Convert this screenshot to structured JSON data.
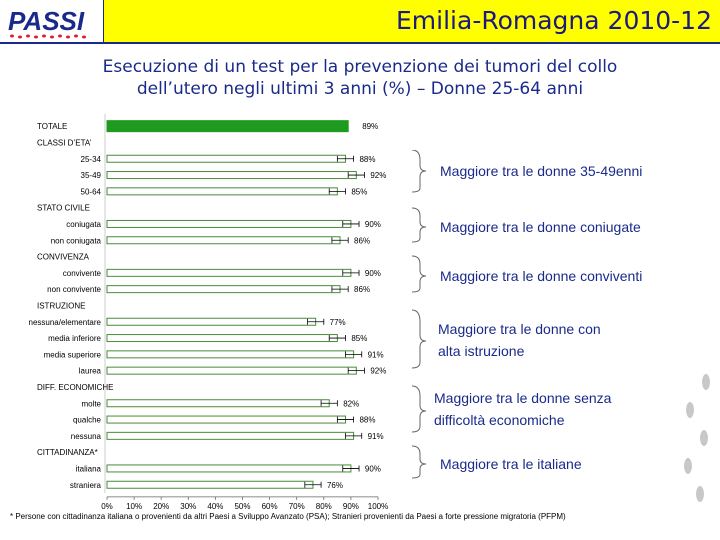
{
  "header": {
    "logo_text": "PASSI",
    "title": "Emilia-Romagna 2010-12"
  },
  "subtitle_line1": "Esecuzione di un test per la prevenzione dei tumori del collo",
  "subtitle_line2": "dell’utero negli ultimi 3 anni (%) – Donne 25-64 anni",
  "notes": [
    "Maggiore tra le donne 35-49enni",
    "Maggiore tra le donne coniugate",
    "Maggiore tra le donne conviventi",
    "Maggiore tra le donne con",
    "alta istruzione",
    "Maggiore tra le donne senza",
    "difficoltà economiche",
    "Maggiore tra le italiane"
  ],
  "footnote": "* Persone con cittadinanza italiana o provenienti da altri Paesi a Sviluppo Avanzato (PSA); Stranieri provenienti da Paesi a forte pressione migratoria (PFPM)",
  "colors": {
    "total_bar": "#1e9a1e",
    "bar_fill": "#ffffff",
    "bar_border": "#4a8a3a",
    "title_bg": "#ffff00",
    "text_blue": "#1a2a8a"
  },
  "chart_data": {
    "type": "bar",
    "orientation": "horizontal",
    "xlim": [
      0,
      100
    ],
    "x_ticks": [
      "0%",
      "10%",
      "20%",
      "30%",
      "40%",
      "50%",
      "60%",
      "70%",
      "80%",
      "90%",
      "100%"
    ],
    "rows": [
      {
        "label": "TOTALE",
        "kind": "total",
        "value": 89,
        "value_label": "89%"
      },
      {
        "label": "CLASSI D’ETA’",
        "kind": "header"
      },
      {
        "label": "25-34",
        "kind": "bar",
        "value": 88,
        "value_label": "88%"
      },
      {
        "label": "35-49",
        "kind": "bar",
        "value": 92,
        "value_label": "92%"
      },
      {
        "label": "50-64",
        "kind": "bar",
        "value": 85,
        "value_label": "85%"
      },
      {
        "label": "STATO CIVILE",
        "kind": "header"
      },
      {
        "label": "coniugata",
        "kind": "bar",
        "value": 90,
        "value_label": "90%"
      },
      {
        "label": "non coniugata",
        "kind": "bar",
        "value": 86,
        "value_label": "86%"
      },
      {
        "label": "CONVIVENZA",
        "kind": "header"
      },
      {
        "label": "convivente",
        "kind": "bar",
        "value": 90,
        "value_label": "90%"
      },
      {
        "label": "non convivente",
        "kind": "bar",
        "value": 86,
        "value_label": "86%"
      },
      {
        "label": "ISTRUZIONE",
        "kind": "header"
      },
      {
        "label": "nessuna/elementare",
        "kind": "bar",
        "value": 77,
        "value_label": "77%"
      },
      {
        "label": "media inferiore",
        "kind": "bar",
        "value": 85,
        "value_label": "85%"
      },
      {
        "label": "media superiore",
        "kind": "bar",
        "value": 91,
        "value_label": "91%"
      },
      {
        "label": "laurea",
        "kind": "bar",
        "value": 92,
        "value_label": "92%"
      },
      {
        "label": "DIFF. ECONOMICHE",
        "kind": "header"
      },
      {
        "label": "molte",
        "kind": "bar",
        "value": 82,
        "value_label": "82%"
      },
      {
        "label": "qualche",
        "kind": "bar",
        "value": 88,
        "value_label": "88%"
      },
      {
        "label": "nessuna",
        "kind": "bar",
        "value": 91,
        "value_label": "91%"
      },
      {
        "label": "CITTADINANZA*",
        "kind": "header"
      },
      {
        "label": "italiana",
        "kind": "bar",
        "value": 90,
        "value_label": "90%"
      },
      {
        "label": "straniera",
        "kind": "bar",
        "value": 76,
        "value_label": "76%"
      }
    ]
  }
}
